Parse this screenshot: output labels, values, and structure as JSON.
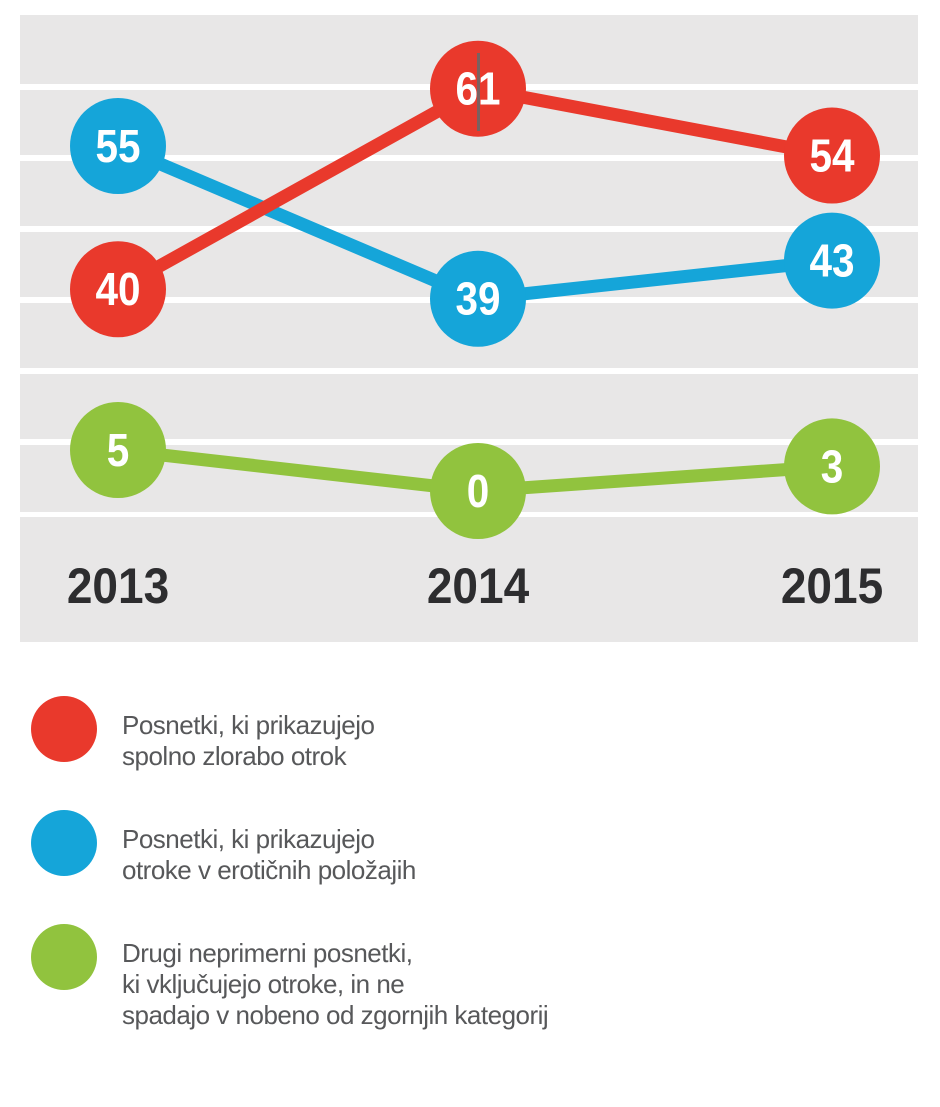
{
  "chart_data": {
    "type": "line",
    "categories": [
      "2013",
      "2014",
      "2015"
    ],
    "series": [
      {
        "name": "Posnetki, ki prikazujejo spolno zlorabo otrok",
        "color": "#e9392c",
        "values": [
          40,
          61,
          54
        ]
      },
      {
        "name": "Posnetki, ki prikazujejo otroke v erotičnih položajih",
        "color": "#15a5d9",
        "values": [
          55,
          39,
          43
        ]
      },
      {
        "name": "Drugi neprimerni posnetki, ki vključujejo otroke, in ne spadajo v nobeno od zgornjih kategorij",
        "color": "#91c33e",
        "values": [
          5,
          0,
          3
        ]
      }
    ],
    "title": "",
    "xlabel": "",
    "ylabel": "",
    "grid": "horizontal white lines on gray bands",
    "legend_position": "bottom",
    "point_labels_inside_markers": true
  },
  "legend": {
    "items": [
      {
        "lines": [
          "Posnetki, ki prikazujejo",
          "spolno zlorabo otrok"
        ]
      },
      {
        "lines": [
          "Posnetki, ki prikazujejo",
          "otroke v erotičnih položajih"
        ]
      },
      {
        "lines": [
          "Drugi neprimerni posnetki,",
          "ki vključujejo otroke, in ne",
          "spadajo v nobeno od zgornjih kategorij"
        ]
      }
    ]
  },
  "colors": {
    "plot_background": "#e8e7e7",
    "gridline": "#ffffff",
    "axis_label": "#2d2d2f",
    "legend_text": "#57585a",
    "point_value_text": "#ffffff",
    "cursor_artifact": "#66686a"
  }
}
